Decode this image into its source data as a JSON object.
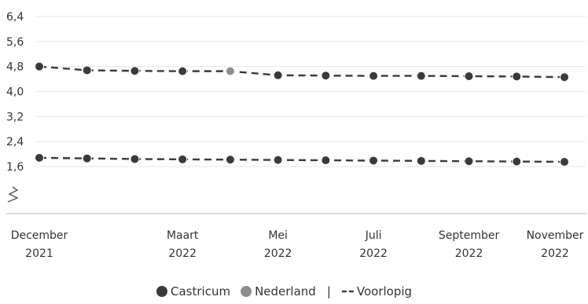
{
  "chart_data": {
    "type": "line",
    "ylim": [
      1.2,
      6.4
    ],
    "y_ticks": [
      "6,4",
      "5,6",
      "4,8",
      "4,0",
      "3,2",
      "2,4",
      "1,6"
    ],
    "y_tick_values": [
      6.4,
      5.6,
      4.8,
      4.0,
      3.2,
      2.4,
      1.6
    ],
    "axis_break": true,
    "x_labels": [
      {
        "index": 0,
        "line1": "December",
        "line2": "2021"
      },
      {
        "index": 3,
        "line1": "Maart",
        "line2": "2022"
      },
      {
        "index": 5,
        "line1": "Mei",
        "line2": "2022"
      },
      {
        "index": 7,
        "line1": "Juli",
        "line2": "2022"
      },
      {
        "index": 9,
        "line1": "September",
        "line2": "2022"
      },
      {
        "index": 11,
        "line1": "November",
        "line2": "2022"
      }
    ],
    "series": [
      {
        "values": [
          4.8,
          4.68,
          4.66,
          4.65,
          4.65,
          4.52,
          4.51,
          4.5,
          4.5,
          4.49,
          4.48,
          4.46
        ],
        "color": "#3a3a3a",
        "point_colors": [
          "#3a3a3a",
          "#3a3a3a",
          "#3a3a3a",
          "#3a3a3a",
          "#8e8e8e",
          "#3a3a3a",
          "#3a3a3a",
          "#3a3a3a",
          "#3a3a3a",
          "#3a3a3a",
          "#3a3a3a",
          "#3a3a3a"
        ],
        "line_style": "dashed"
      },
      {
        "values": [
          1.88,
          1.86,
          1.84,
          1.83,
          1.82,
          1.81,
          1.8,
          1.79,
          1.78,
          1.77,
          1.76,
          1.75
        ],
        "color": "#3a3a3a",
        "line_style": "dashed"
      }
    ],
    "grid": true,
    "legend_position": "bottom-center"
  },
  "legend": {
    "items": [
      {
        "label": "Castricum",
        "color": "#3a3a3a",
        "kind": "dot"
      },
      {
        "label": "Nederland",
        "color": "#8e8e8e",
        "kind": "dot"
      },
      {
        "label": "|",
        "color": "#777777",
        "kind": "separator"
      },
      {
        "label": "Voorlopig",
        "color": "#3a3a3a",
        "kind": "dash"
      }
    ]
  }
}
